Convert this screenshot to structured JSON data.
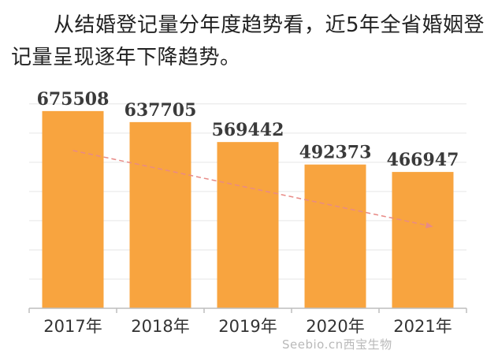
{
  "intro_text": "从结婚登记量分年度趋势看，近5年全省婚姻登记量呈现逐年下降趋势。",
  "watermark": "Seebio.cn西宝生物",
  "colors": {
    "bar": "#f8a43f",
    "trend_arrow": "#e88a86",
    "grid": "#e6e6e6",
    "axis": "#bdbdbd"
  },
  "chart_data": {
    "type": "bar",
    "categories": [
      "2017年",
      "2018年",
      "2019年",
      "2020年",
      "2021年"
    ],
    "values": [
      675508,
      637705,
      569442,
      492373,
      466947
    ],
    "title": "",
    "xlabel": "",
    "ylabel": "",
    "ylim": [
      0,
      740000
    ],
    "grid": true,
    "legend": "none",
    "annotations": [
      "dashed downward trend arrow from the first bar to the last bar"
    ]
  }
}
